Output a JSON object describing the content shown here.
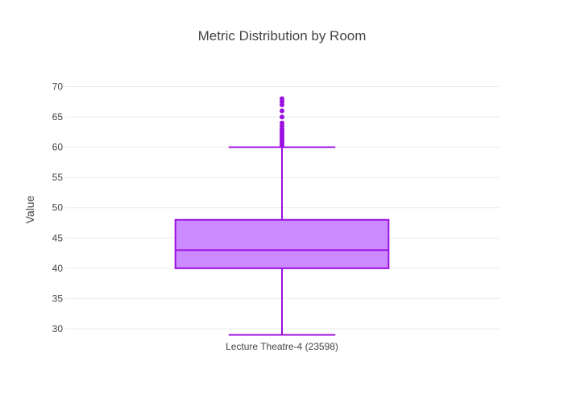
{
  "chart_data": {
    "type": "box",
    "title": "Metric Distribution by Room",
    "xlabel": "",
    "ylabel": "Value",
    "ylim": [
      28.4,
      71
    ],
    "yticks": [
      30,
      35,
      40,
      45,
      50,
      55,
      60,
      65,
      70
    ],
    "grid": true,
    "legend": "none",
    "categories": [
      "Lecture Theatre-4 (23598)"
    ],
    "series": [
      {
        "category": "Lecture Theatre-4 (23598)",
        "min": 29,
        "q1": 40,
        "median": 43,
        "q3": 48,
        "max": 60,
        "outliers": [
          60.3,
          60.6,
          61,
          61.4,
          61.8,
          62.2,
          62.6,
          63,
          63.5,
          64,
          65,
          66,
          67,
          67.5,
          68
        ]
      }
    ],
    "colors": {
      "box_fill": "#c77dff",
      "box_line": "#9b10e0",
      "grid": "#ebebeb",
      "text": "#444444",
      "title": "#444444"
    }
  }
}
